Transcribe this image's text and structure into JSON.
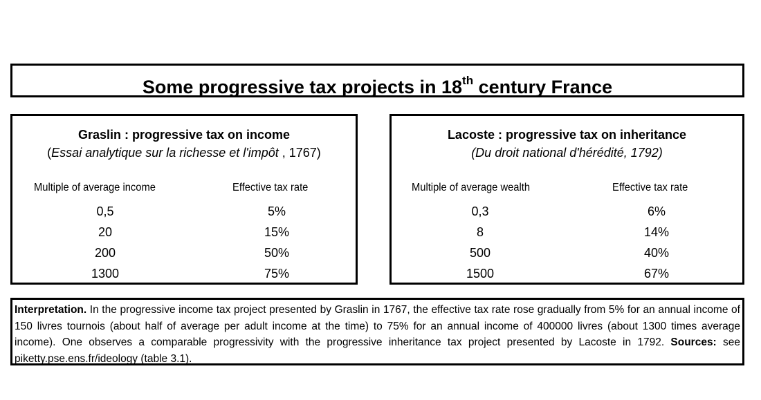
{
  "title": {
    "prefix": "Some progressive tax projects in 18",
    "sup": "th",
    "suffix": " century France"
  },
  "left_panel": {
    "title": "Graslin : progressive tax on income",
    "subtitle_open": "(",
    "subtitle_italic": "Essai analytique sur la richesse et l'impôt",
    "subtitle_rest": " , 1767)",
    "col1_header": "Multiple of average income",
    "col2_header": "Effective tax rate",
    "rows": [
      {
        "multiple": "0,5",
        "rate": "5%"
      },
      {
        "multiple": "20",
        "rate": "15%"
      },
      {
        "multiple": "200",
        "rate": "50%"
      },
      {
        "multiple": "1300",
        "rate": "75%"
      }
    ]
  },
  "right_panel": {
    "title": "Lacoste : progressive tax on inheritance",
    "subtitle": "(Du droit national d'hérédité, 1792)",
    "col1_header": "Multiple of average wealth",
    "col2_header": "Effective tax rate",
    "rows": [
      {
        "multiple": "0,3",
        "rate": "6%"
      },
      {
        "multiple": "8",
        "rate": "14%"
      },
      {
        "multiple": "500",
        "rate": "40%"
      },
      {
        "multiple": "1500",
        "rate": "67%"
      }
    ]
  },
  "interpretation": {
    "label": "Interpretation.",
    "text": " In the progressive income tax project presented by Graslin in 1767, the effective tax rate rose gradually from 5% for an annual income of 150 livres tournois (about half of average per adult income at the time) to 75% for an annual income of 400000 livres (about 1300 times average income). One observes a comparable progressivity with the progressive inheritance tax project presented by Lacoste in 1792.  ",
    "sources_label": "Sources:",
    "sources_text": " see piketty.pse.ens.fr/ideology (table 3.1)."
  }
}
